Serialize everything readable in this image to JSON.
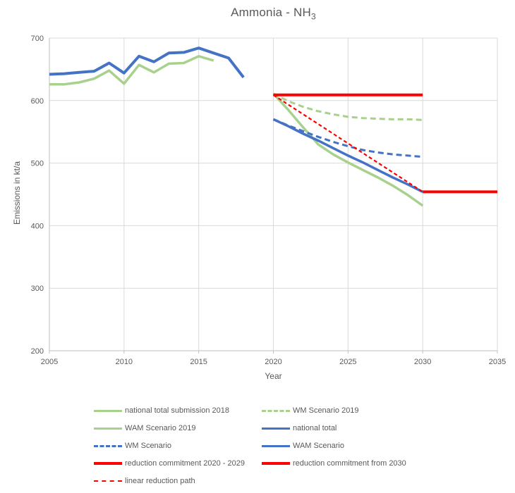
{
  "title": {
    "main": "Ammonia - NH",
    "subscript": "3"
  },
  "colors": {
    "green": "#A9D18E",
    "blue": "#4472C4",
    "red": "#FF0000",
    "gridline": "#D9D9D9",
    "axis": "#BFBFBF",
    "text": "#595959"
  },
  "chart_data": {
    "type": "line",
    "title": "Ammonia - NH3",
    "xlabel": "Year",
    "ylabel": "Emissions in kt/a",
    "xlim": [
      2005,
      2035
    ],
    "ylim": [
      200,
      700
    ],
    "x_ticks": [
      2005,
      2010,
      2015,
      2020,
      2025,
      2030,
      2035
    ],
    "y_ticks": [
      200,
      300,
      400,
      500,
      600,
      700
    ],
    "grid": true,
    "legend_position": "bottom",
    "series": [
      {
        "name": "WM Scenario 2019",
        "color": "green",
        "style": "dashed",
        "width": 3,
        "x": [
          2020,
          2021,
          2022,
          2023,
          2024,
          2025,
          2026,
          2027,
          2028,
          2029,
          2030
        ],
        "y": [
          611,
          599,
          590,
          583,
          578,
          574,
          572,
          571,
          570,
          570,
          569
        ]
      },
      {
        "name": "WAM Scenario 2019",
        "color": "green",
        "style": "solid",
        "width": 3.5,
        "x": [
          2020,
          2021,
          2022,
          2023,
          2024,
          2025,
          2026,
          2027,
          2028,
          2029,
          2030
        ],
        "y": [
          611,
          585,
          557,
          530,
          514,
          501,
          489,
          477,
          464,
          449,
          432
        ]
      },
      {
        "name": "national total submission 2018",
        "color": "green",
        "style": "solid",
        "width": 3.5,
        "x": [
          2005,
          2006,
          2007,
          2008,
          2009,
          2010,
          2011,
          2012,
          2013,
          2014,
          2015,
          2016
        ],
        "y": [
          626,
          626,
          629,
          635,
          648,
          627,
          657,
          645,
          659,
          660,
          671,
          664
        ]
      },
      {
        "name": "WM Scenario",
        "color": "blue",
        "style": "dashed",
        "width": 3,
        "x": [
          2020,
          2021,
          2022,
          2023,
          2024,
          2025,
          2026,
          2027,
          2028,
          2029,
          2030
        ],
        "y": [
          570,
          560,
          551,
          542,
          534,
          527,
          521,
          517,
          514,
          512,
          510
        ]
      },
      {
        "name": "WAM Scenario",
        "color": "blue",
        "style": "solid",
        "width": 3.5,
        "x": [
          2020,
          2021,
          2022,
          2023,
          2024,
          2025,
          2026,
          2027,
          2028,
          2029,
          2030
        ],
        "y": [
          570,
          559,
          547,
          536,
          524,
          512,
          501,
          489,
          477,
          466,
          454
        ]
      },
      {
        "name": "national total",
        "color": "blue",
        "style": "solid",
        "width": 4,
        "x": [
          2005,
          2006,
          2007,
          2008,
          2009,
          2010,
          2011,
          2012,
          2013,
          2014,
          2015,
          2016,
          2017,
          2018
        ],
        "y": [
          642,
          643,
          645,
          647,
          660,
          644,
          671,
          662,
          676,
          677,
          684,
          676,
          668,
          637
        ]
      },
      {
        "name": "linear reduction path",
        "color": "red",
        "style": "dashed",
        "width": 2.2,
        "x": [
          2020,
          2030
        ],
        "y": [
          609,
          454
        ]
      },
      {
        "name": "reduction commitment 2020 - 2029",
        "color": "red",
        "style": "solid",
        "width": 4,
        "x": [
          2020,
          2030
        ],
        "y": [
          609,
          609
        ]
      },
      {
        "name": "reduction commitment from 2030",
        "color": "red",
        "style": "solid",
        "width": 4,
        "x": [
          2030,
          2035
        ],
        "y": [
          454,
          454
        ]
      }
    ]
  },
  "legend": {
    "items": [
      {
        "label": "national total submission 2018",
        "color": "green",
        "style": "solid"
      },
      {
        "label": "WM Scenario 2019",
        "color": "green",
        "style": "dashed"
      },
      {
        "label": "WAM Scenario 2019",
        "color": "green",
        "style": "solid"
      },
      {
        "label": "national total",
        "color": "blue",
        "style": "solid"
      },
      {
        "label": "WM Scenario",
        "color": "blue",
        "style": "dashed"
      },
      {
        "label": "WAM Scenario",
        "color": "blue",
        "style": "solid"
      },
      {
        "label": "reduction commitment 2020 - 2029",
        "color": "red",
        "style": "solid"
      },
      {
        "label": "reduction commitment from 2030",
        "color": "red",
        "style": "solid"
      },
      {
        "label": "linear reduction path",
        "color": "red",
        "style": "dashed"
      }
    ]
  }
}
